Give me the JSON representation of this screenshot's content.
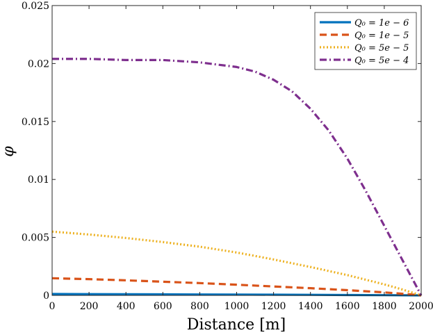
{
  "chart_data": {
    "type": "line",
    "title": "",
    "xlabel": "Distance [m]",
    "ylabel": "φ",
    "xlim": [
      0,
      2000
    ],
    "ylim": [
      0,
      0.025
    ],
    "x_ticks": [
      "0",
      "200",
      "400",
      "600",
      "800",
      "1000",
      "1200",
      "1400",
      "1600",
      "1800",
      "2000"
    ],
    "y_ticks": [
      "0",
      "0.005",
      "0.01",
      "0.015",
      "0.02",
      "0.025"
    ],
    "legend_position": "top-right",
    "series": [
      {
        "name": "Q₀ = 1e − 6",
        "color": "#0072BD",
        "style": "solid",
        "x": [
          0,
          200,
          400,
          600,
          800,
          1000,
          1200,
          1400,
          1600,
          1800,
          2000
        ],
        "y": [
          0.00012,
          0.00011,
          0.0001,
          9e-05,
          8e-05,
          7e-05,
          6e-05,
          5e-05,
          3e-05,
          2e-05,
          0
        ]
      },
      {
        "name": "Q₀ = 1e − 5",
        "color": "#D95319",
        "style": "dashed",
        "x": [
          0,
          200,
          400,
          600,
          800,
          1000,
          1200,
          1400,
          1600,
          1800,
          1900,
          2000
        ],
        "y": [
          0.00148,
          0.0014,
          0.0013,
          0.00118,
          0.00106,
          0.00092,
          0.00077,
          0.00062,
          0.00045,
          0.00026,
          0.00014,
          0
        ]
      },
      {
        "name": "Q₀ = 5e − 5",
        "color": "#EDB120",
        "style": "dotted",
        "x": [
          0,
          200,
          400,
          600,
          800,
          1000,
          1200,
          1400,
          1600,
          1800,
          1900,
          2000
        ],
        "y": [
          0.0055,
          0.00525,
          0.00495,
          0.0046,
          0.0042,
          0.0037,
          0.0031,
          0.00245,
          0.00175,
          0.00095,
          0.0005,
          0
        ]
      },
      {
        "name": "Q₀ = 5e − 4",
        "color": "#7E2F8E",
        "style": "dashdot",
        "x": [
          0,
          200,
          400,
          600,
          800,
          1000,
          1100,
          1200,
          1300,
          1400,
          1500,
          1600,
          1700,
          1800,
          1900,
          2000
        ],
        "y": [
          0.0204,
          0.0204,
          0.0203,
          0.0203,
          0.0201,
          0.0197,
          0.0193,
          0.0186,
          0.0176,
          0.0161,
          0.0142,
          0.0118,
          0.009,
          0.006,
          0.003,
          0
        ]
      }
    ]
  }
}
